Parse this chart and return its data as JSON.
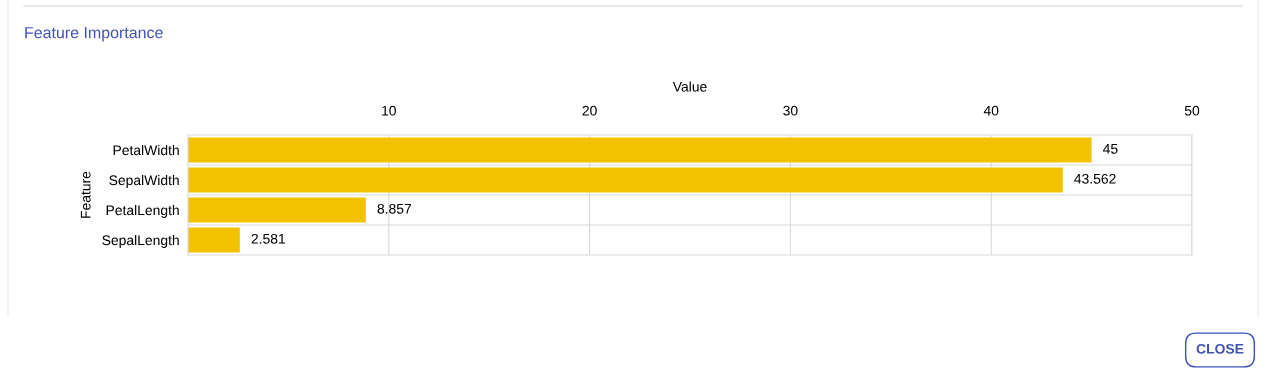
{
  "chart_data": {
    "type": "bar",
    "orientation": "horizontal",
    "title": "Feature Importance",
    "xlabel": "Value",
    "ylabel": "Feature",
    "categories": [
      "PetalWidth",
      "SepalWidth",
      "PetalLength",
      "SepalLength"
    ],
    "values": [
      45,
      43.562,
      8.857,
      2.581
    ],
    "color": "#f2c200",
    "xlim": [
      0,
      50
    ],
    "xticks": [
      10,
      20,
      30,
      40,
      50
    ],
    "grid": true,
    "data_labels": true,
    "annotations": [
      "CLOSE"
    ]
  }
}
